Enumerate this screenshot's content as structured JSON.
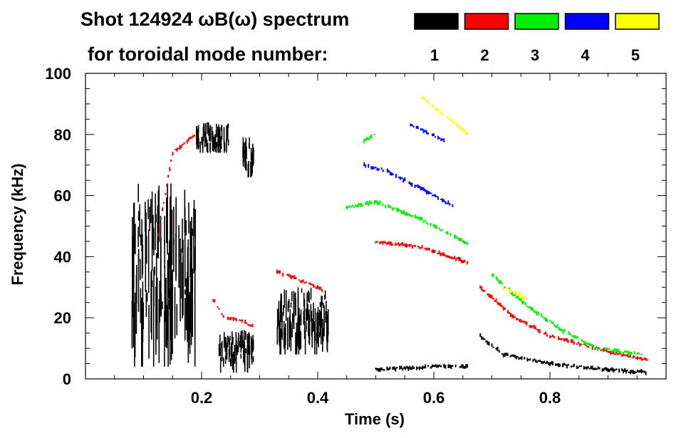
{
  "chart_data": {
    "type": "heatmap",
    "title_line1": "Shot 124924 ωB(ω) spectrum",
    "title_line2": "for toroidal mode number:",
    "xlabel": "Time (s)",
    "ylabel": "Frequency (kHz)",
    "xlim": [
      0.0,
      1.0
    ],
    "ylim": [
      0,
      100
    ],
    "xticks": [
      {
        "value": 0.2,
        "label": "0.2"
      },
      {
        "value": 0.4,
        "label": "0.4"
      },
      {
        "value": 0.6,
        "label": "0.6"
      },
      {
        "value": 0.8,
        "label": "0.8"
      }
    ],
    "yticks": [
      {
        "value": 0,
        "label": "0"
      },
      {
        "value": 20,
        "label": "20"
      },
      {
        "value": 40,
        "label": "40"
      },
      {
        "value": 60,
        "label": "60"
      },
      {
        "value": 80,
        "label": "80"
      },
      {
        "value": 100,
        "label": "100"
      }
    ],
    "legend": [
      {
        "n": "1",
        "color": "#000000"
      },
      {
        "n": "2",
        "color": "#ff0000"
      },
      {
        "n": "3",
        "color": "#00ee00"
      },
      {
        "n": "4",
        "color": "#0000ff"
      },
      {
        "n": "5",
        "color": "#ffff00"
      }
    ],
    "series": [
      {
        "mode": "1",
        "color": "#000000",
        "kind": "blob",
        "x": [
          0.08,
          0.19
        ],
        "y": [
          4,
          64
        ]
      },
      {
        "mode": "1",
        "color": "#000000",
        "kind": "blob",
        "x": [
          0.19,
          0.25
        ],
        "y": [
          74,
          84
        ]
      },
      {
        "mode": "1",
        "color": "#000000",
        "kind": "blob",
        "x": [
          0.23,
          0.29
        ],
        "y": [
          2,
          16
        ]
      },
      {
        "mode": "1",
        "color": "#000000",
        "kind": "blob",
        "x": [
          0.27,
          0.29
        ],
        "y": [
          66,
          80
        ]
      },
      {
        "mode": "1",
        "color": "#000000",
        "kind": "blob",
        "x": [
          0.33,
          0.42
        ],
        "y": [
          8,
          30
        ]
      },
      {
        "mode": "1",
        "color": "#000000",
        "kind": "line",
        "x": [
          0.68,
          0.72,
          0.8,
          0.9,
          0.97
        ],
        "y": [
          14,
          8,
          5,
          3,
          2
        ]
      },
      {
        "mode": "1",
        "color": "#000000",
        "kind": "line",
        "x": [
          0.5,
          0.6,
          0.66
        ],
        "y": [
          3,
          4,
          4
        ]
      },
      {
        "mode": "2",
        "color": "#ff0000",
        "kind": "line",
        "x": [
          0.12,
          0.15,
          0.19
        ],
        "y": [
          42,
          74,
          80
        ]
      },
      {
        "mode": "2",
        "color": "#ff0000",
        "kind": "line",
        "x": [
          0.22,
          0.24,
          0.27,
          0.29
        ],
        "y": [
          26,
          20,
          19,
          17
        ]
      },
      {
        "mode": "2",
        "color": "#ff0000",
        "kind": "line",
        "x": [
          0.33,
          0.36,
          0.41
        ],
        "y": [
          35,
          33,
          29
        ]
      },
      {
        "mode": "2",
        "color": "#ff0000",
        "kind": "line",
        "x": [
          0.5,
          0.58,
          0.66
        ],
        "y": [
          45,
          43,
          38
        ]
      },
      {
        "mode": "2",
        "color": "#ff0000",
        "kind": "line",
        "x": [
          0.68,
          0.74,
          0.8,
          0.9,
          0.97
        ],
        "y": [
          30,
          20,
          14,
          9,
          6
        ]
      },
      {
        "mode": "3",
        "color": "#00ee00",
        "kind": "line",
        "x": [
          0.45,
          0.5,
          0.58,
          0.66
        ],
        "y": [
          56,
          58,
          52,
          44
        ]
      },
      {
        "mode": "3",
        "color": "#00ee00",
        "kind": "line",
        "x": [
          0.48,
          0.5
        ],
        "y": [
          78,
          80
        ]
      },
      {
        "mode": "3",
        "color": "#00ee00",
        "kind": "line",
        "x": [
          0.7,
          0.76,
          0.82,
          0.88,
          0.96
        ],
        "y": [
          34,
          24,
          16,
          10,
          8
        ]
      },
      {
        "mode": "4",
        "color": "#0000ff",
        "kind": "line",
        "x": [
          0.48,
          0.52,
          0.58,
          0.64
        ],
        "y": [
          70,
          68,
          62,
          56
        ]
      },
      {
        "mode": "4",
        "color": "#0000ff",
        "kind": "line",
        "x": [
          0.56,
          0.62
        ],
        "y": [
          83,
          78
        ]
      },
      {
        "mode": "5",
        "color": "#ffff00",
        "kind": "line",
        "x": [
          0.58,
          0.62,
          0.66
        ],
        "y": [
          92,
          86,
          80
        ]
      },
      {
        "mode": "5",
        "color": "#ffff00",
        "kind": "line",
        "x": [
          0.72,
          0.76
        ],
        "y": [
          30,
          26
        ]
      }
    ]
  }
}
